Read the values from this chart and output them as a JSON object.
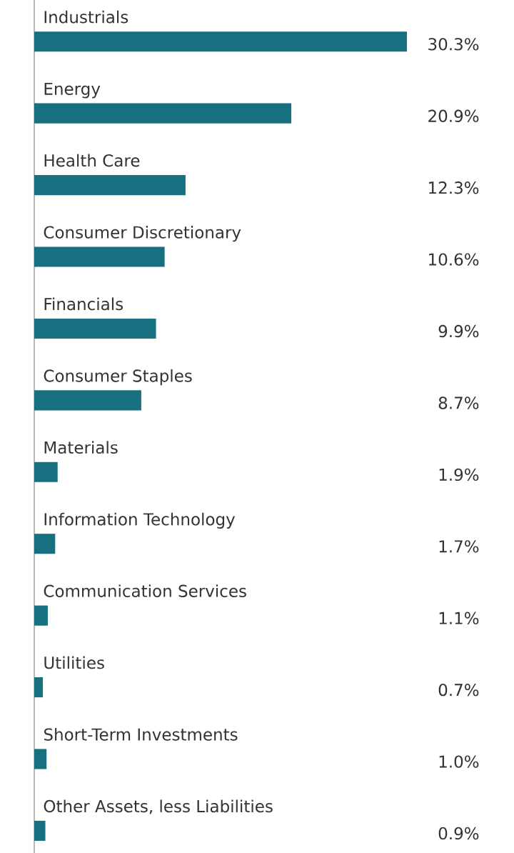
{
  "chart_data": {
    "type": "bar",
    "orientation": "horizontal",
    "color": "#17707f",
    "categories": [
      "Industrials",
      "Energy",
      "Health Care",
      "Consumer Discretionary",
      "Financials",
      "Consumer Staples",
      "Materials",
      "Information Technology",
      "Communication Services",
      "Utilities",
      "Short-Term Investments",
      "Other Assets, less Liabilities"
    ],
    "values": [
      30.3,
      20.9,
      12.3,
      10.6,
      9.9,
      8.7,
      1.9,
      1.7,
      1.1,
      0.7,
      1.0,
      0.9
    ],
    "value_labels": [
      "30.3%",
      "20.9%",
      "12.3%",
      "10.6%",
      "9.9%",
      "8.7%",
      "1.9%",
      "1.7%",
      "1.1%",
      "0.7%",
      "1.0%",
      "0.9%"
    ]
  }
}
